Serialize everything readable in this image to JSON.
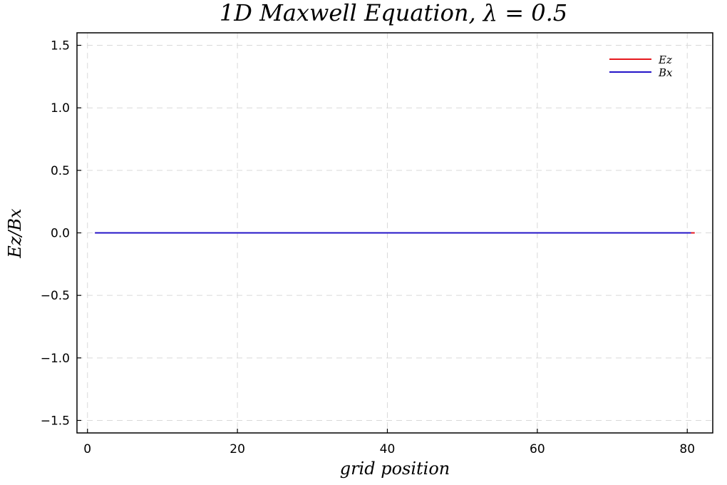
{
  "chart_data": {
    "type": "line",
    "title": "1D Maxwell Equation, λ = 0.5",
    "xlabel": "grid position",
    "ylabel": "Ez/Bx",
    "xlim": [
      -1.4,
      83.4
    ],
    "ylim": [
      -1.6,
      1.6
    ],
    "xticks": [
      0,
      20,
      40,
      60,
      80
    ],
    "xtick_labels": [
      "0",
      "20",
      "40",
      "60",
      "80"
    ],
    "yticks": [
      -1.5,
      -1.0,
      -0.5,
      0.0,
      0.5,
      1.0,
      1.5
    ],
    "ytick_labels": [
      "−1.5",
      "−1.0",
      "−0.5",
      "0.0",
      "0.5",
      "1.0",
      "1.5"
    ],
    "grid": true,
    "legend_position": "top-right",
    "series": [
      {
        "name": "Ez",
        "color": "#e6191e",
        "x": [
          1,
          81
        ],
        "y": [
          0,
          0
        ]
      },
      {
        "name": "Bx",
        "color": "#2414c8",
        "x": [
          1,
          80.5
        ],
        "y": [
          0,
          0
        ]
      }
    ]
  }
}
